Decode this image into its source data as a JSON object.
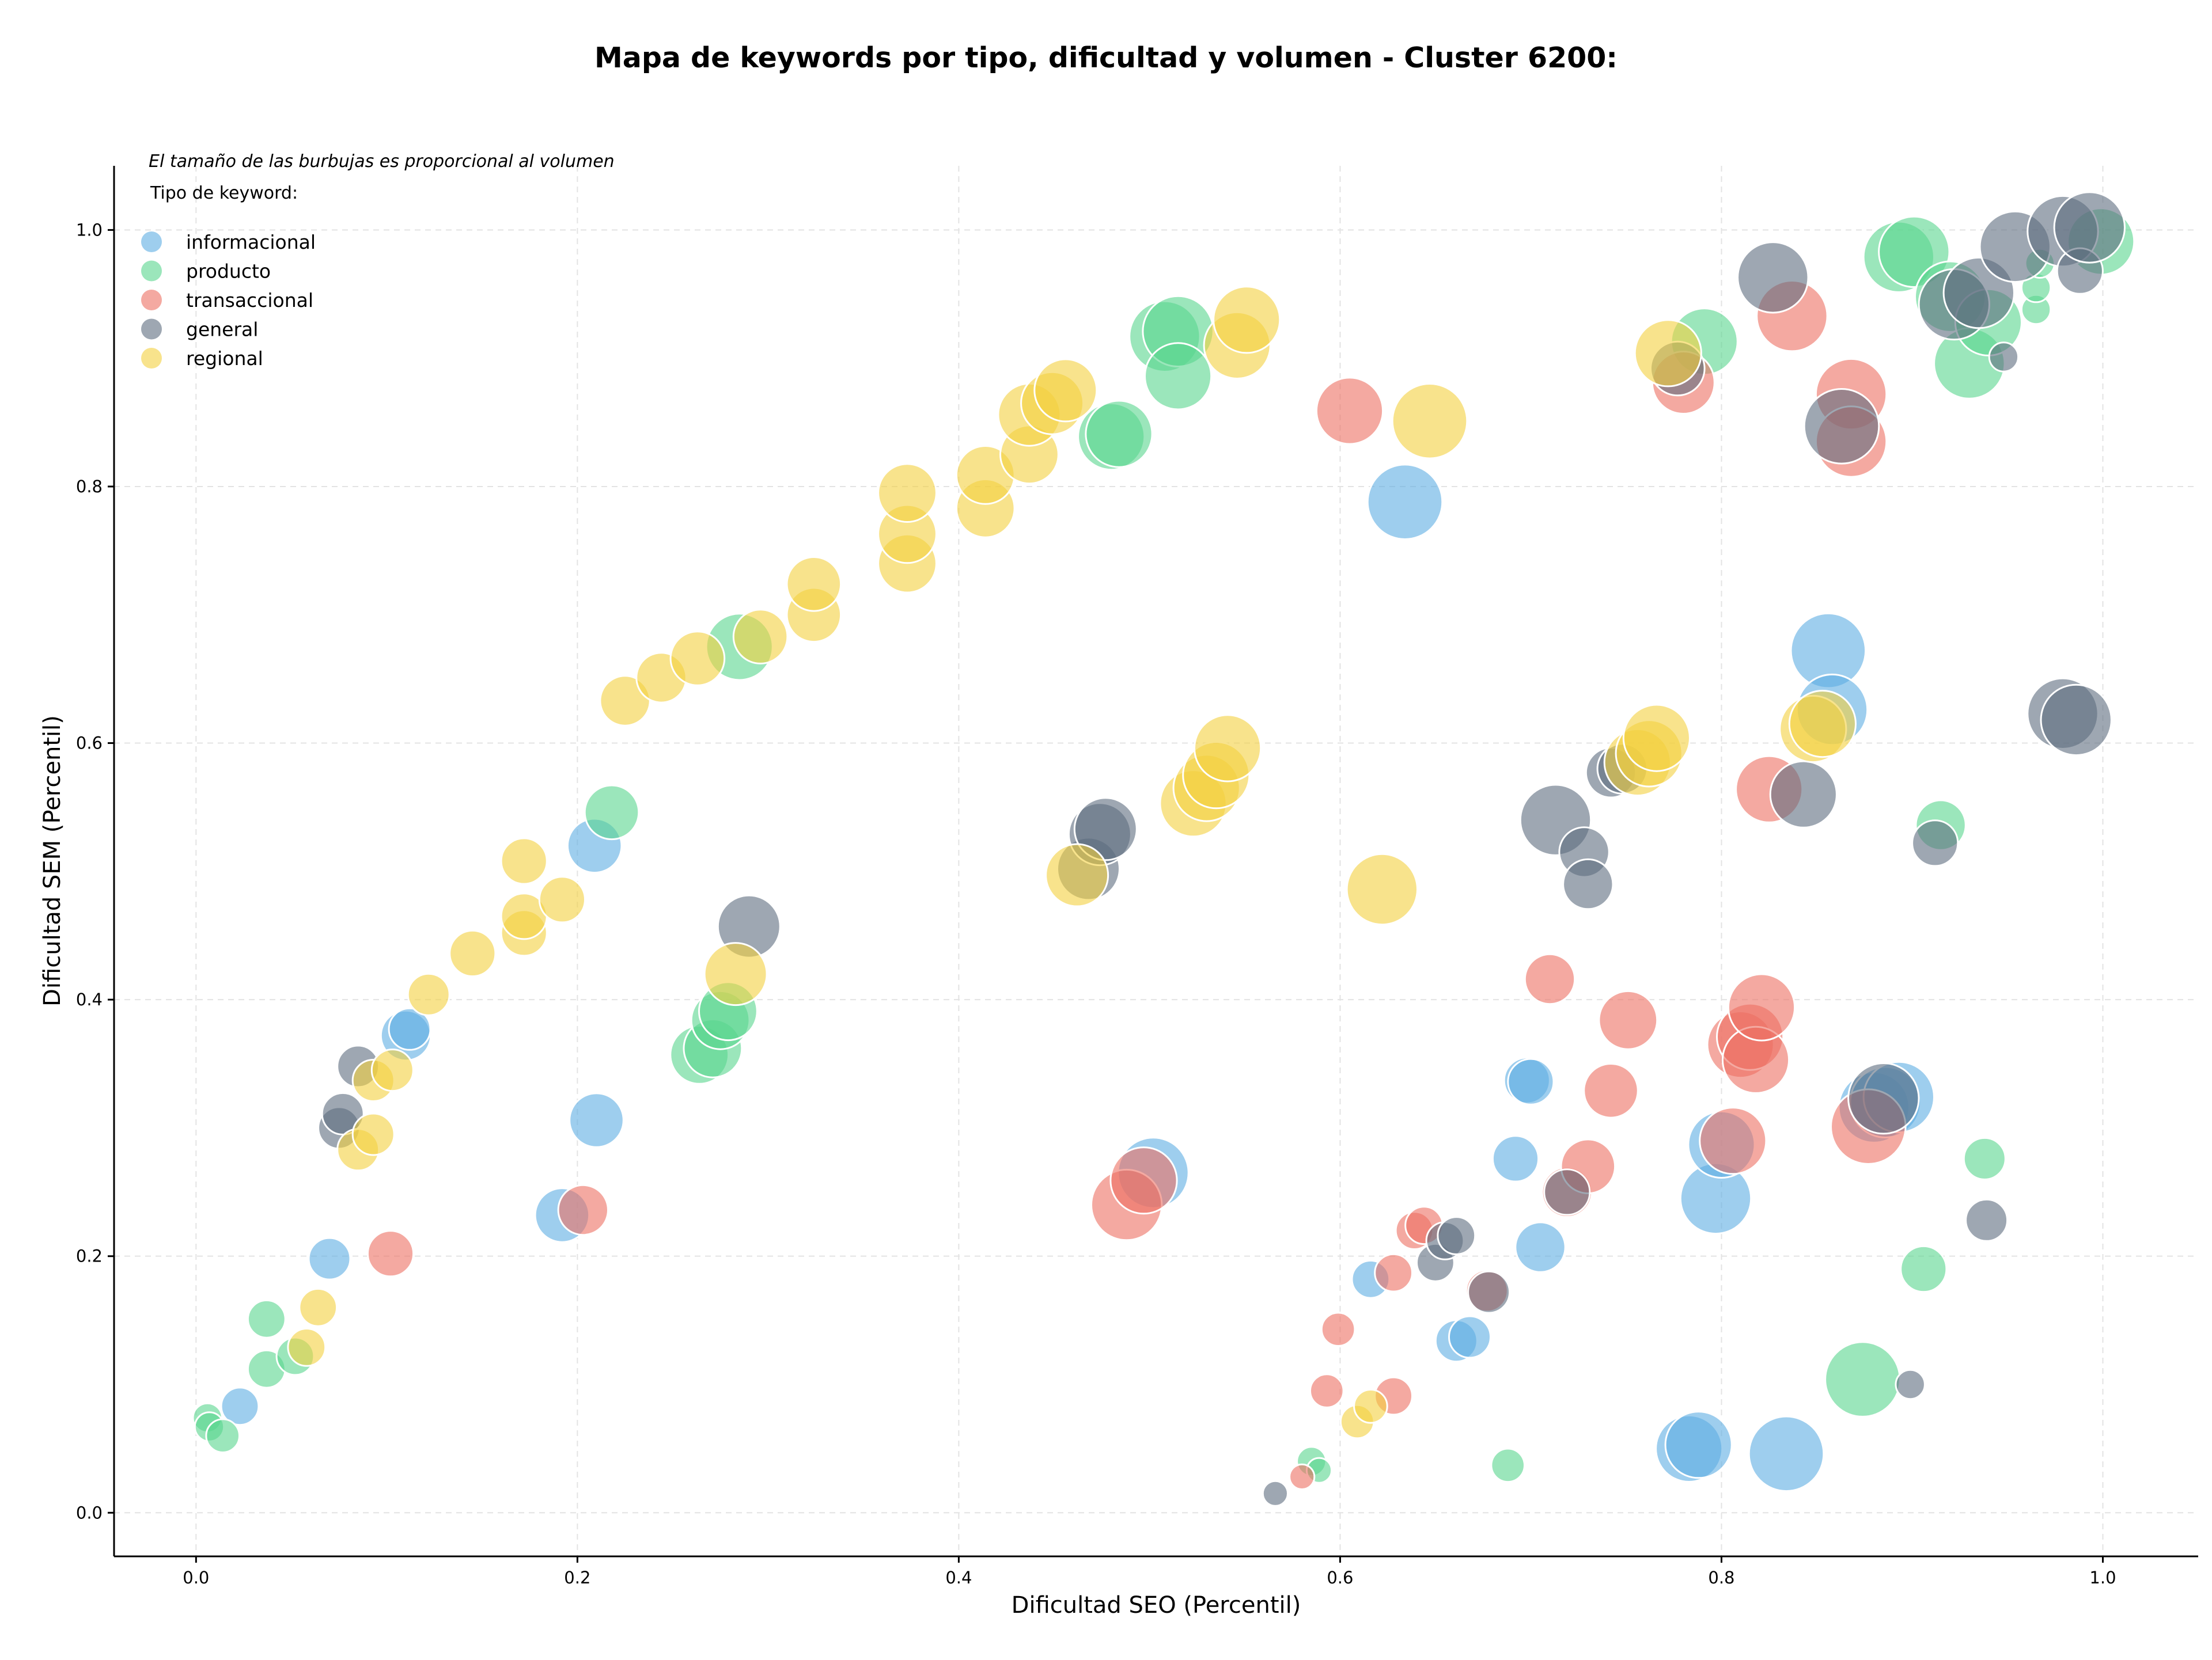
{
  "chart_data": {
    "type": "scatter",
    "title": "Mapa de keywords por tipo, dificultad y volumen - Cluster 6200:",
    "xlabel": "Dificultad SEO (Percentil)",
    "ylabel": "Dificultad SEM (Percentil)",
    "xlim": [
      -0.043,
      1.05
    ],
    "ylim": [
      -0.034,
      1.05
    ],
    "xticks": [
      0.0,
      0.2,
      0.4,
      0.6,
      0.8,
      1.0
    ],
    "yticks": [
      0.0,
      0.2,
      0.4,
      0.6,
      0.8,
      1.0
    ],
    "xtick_labels": [
      "0.0",
      "0.2",
      "0.4",
      "0.6",
      "0.8",
      "1.0"
    ],
    "ytick_labels": [
      "0.0",
      "0.2",
      "0.4",
      "0.6",
      "0.8",
      "1.0"
    ],
    "grid": true,
    "note": "El tamaño de las burbujas es proporcional al volumen",
    "legend_title": "Tipo de keyword:",
    "legend_position": "top-left",
    "series": [
      {
        "name": "informacional",
        "color": "#5DADE2",
        "points": [
          {
            "x": 0.023,
            "y": 0.083,
            "s": 0.9
          },
          {
            "x": 0.07,
            "y": 0.198,
            "s": 1.0
          },
          {
            "x": 0.11,
            "y": 0.372,
            "s": 1.2
          },
          {
            "x": 0.112,
            "y": 0.377,
            "s": 1.0
          },
          {
            "x": 0.192,
            "y": 0.232,
            "s": 1.3
          },
          {
            "x": 0.21,
            "y": 0.306,
            "s": 1.3
          },
          {
            "x": 0.209,
            "y": 0.52,
            "s": 1.3
          },
          {
            "x": 0.502,
            "y": 0.265,
            "s": 1.7
          },
          {
            "x": 0.634,
            "y": 0.788,
            "s": 1.8
          },
          {
            "x": 0.616,
            "y": 0.182,
            "s": 0.9
          },
          {
            "x": 0.661,
            "y": 0.134,
            "s": 1.0
          },
          {
            "x": 0.668,
            "y": 0.137,
            "s": 1.0
          },
          {
            "x": 0.692,
            "y": 0.276,
            "s": 1.1
          },
          {
            "x": 0.698,
            "y": 0.337,
            "s": 1.1
          },
          {
            "x": 0.7,
            "y": 0.336,
            "s": 1.1
          },
          {
            "x": 0.705,
            "y": 0.207,
            "s": 1.2
          },
          {
            "x": 0.783,
            "y": 0.05,
            "s": 1.6
          },
          {
            "x": 0.788,
            "y": 0.053,
            "s": 1.6
          },
          {
            "x": 0.797,
            "y": 0.245,
            "s": 1.7
          },
          {
            "x": 0.8,
            "y": 0.287,
            "s": 1.6
          },
          {
            "x": 0.834,
            "y": 0.046,
            "s": 1.8
          },
          {
            "x": 0.856,
            "y": 0.672,
            "s": 1.8
          },
          {
            "x": 0.858,
            "y": 0.626,
            "s": 1.7
          },
          {
            "x": 0.88,
            "y": 0.316,
            "s": 1.7
          },
          {
            "x": 0.886,
            "y": 0.32,
            "s": 1.7
          },
          {
            "x": 0.893,
            "y": 0.324,
            "s": 1.7
          }
        ]
      },
      {
        "name": "producto",
        "color": "#58D68D",
        "points": [
          {
            "x": 0.006,
            "y": 0.074,
            "s": 0.7
          },
          {
            "x": 0.007,
            "y": 0.067,
            "s": 0.7
          },
          {
            "x": 0.014,
            "y": 0.06,
            "s": 0.8
          },
          {
            "x": 0.037,
            "y": 0.151,
            "s": 0.9
          },
          {
            "x": 0.037,
            "y": 0.112,
            "s": 0.9
          },
          {
            "x": 0.052,
            "y": 0.122,
            "s": 0.9
          },
          {
            "x": 0.218,
            "y": 0.546,
            "s": 1.3
          },
          {
            "x": 0.264,
            "y": 0.357,
            "s": 1.4
          },
          {
            "x": 0.271,
            "y": 0.362,
            "s": 1.4
          },
          {
            "x": 0.275,
            "y": 0.384,
            "s": 1.4
          },
          {
            "x": 0.279,
            "y": 0.391,
            "s": 1.4
          },
          {
            "x": 0.285,
            "y": 0.675,
            "s": 1.6
          },
          {
            "x": 0.48,
            "y": 0.839,
            "s": 1.6
          },
          {
            "x": 0.484,
            "y": 0.841,
            "s": 1.6
          },
          {
            "x": 0.508,
            "y": 0.917,
            "s": 1.7
          },
          {
            "x": 0.515,
            "y": 0.921,
            "s": 1.7
          },
          {
            "x": 0.515,
            "y": 0.886,
            "s": 1.6
          },
          {
            "x": 0.585,
            "y": 0.04,
            "s": 0.7
          },
          {
            "x": 0.589,
            "y": 0.033,
            "s": 0.6
          },
          {
            "x": 0.688,
            "y": 0.037,
            "s": 0.8
          },
          {
            "x": 0.791,
            "y": 0.913,
            "s": 1.6
          },
          {
            "x": 0.874,
            "y": 0.104,
            "s": 1.8
          },
          {
            "x": 0.893,
            "y": 0.979,
            "s": 1.7
          },
          {
            "x": 0.901,
            "y": 0.983,
            "s": 1.7
          },
          {
            "x": 0.906,
            "y": 0.19,
            "s": 1.1
          },
          {
            "x": 0.915,
            "y": 0.536,
            "s": 1.2
          },
          {
            "x": 0.92,
            "y": 0.948,
            "s": 1.7
          },
          {
            "x": 0.93,
            "y": 0.896,
            "s": 1.7
          },
          {
            "x": 0.94,
            "y": 0.928,
            "s": 1.6
          },
          {
            "x": 0.938,
            "y": 0.276,
            "s": 1.0
          },
          {
            "x": 0.965,
            "y": 0.938,
            "s": 0.7
          },
          {
            "x": 0.965,
            "y": 0.955,
            "s": 0.7
          },
          {
            "x": 0.967,
            "y": 0.974,
            "s": 0.7
          },
          {
            "x": 0.999,
            "y": 0.991,
            "s": 1.6
          }
        ]
      },
      {
        "name": "transaccional",
        "color": "#EC7063",
        "points": [
          {
            "x": 0.102,
            "y": 0.202,
            "s": 1.1
          },
          {
            "x": 0.203,
            "y": 0.236,
            "s": 1.2
          },
          {
            "x": 0.488,
            "y": 0.24,
            "s": 1.7
          },
          {
            "x": 0.497,
            "y": 0.259,
            "s": 1.6
          },
          {
            "x": 0.58,
            "y": 0.028,
            "s": 0.6
          },
          {
            "x": 0.593,
            "y": 0.095,
            "s": 0.8
          },
          {
            "x": 0.599,
            "y": 0.143,
            "s": 0.8
          },
          {
            "x": 0.605,
            "y": 0.859,
            "s": 1.6
          },
          {
            "x": 0.628,
            "y": 0.187,
            "s": 0.9
          },
          {
            "x": 0.628,
            "y": 0.091,
            "s": 0.9
          },
          {
            "x": 0.639,
            "y": 0.22,
            "s": 0.9
          },
          {
            "x": 0.644,
            "y": 0.224,
            "s": 0.9
          },
          {
            "x": 0.677,
            "y": 0.173,
            "s": 1.0
          },
          {
            "x": 0.71,
            "y": 0.416,
            "s": 1.2
          },
          {
            "x": 0.719,
            "y": 0.25,
            "s": 1.2
          },
          {
            "x": 0.73,
            "y": 0.27,
            "s": 1.3
          },
          {
            "x": 0.742,
            "y": 0.329,
            "s": 1.3
          },
          {
            "x": 0.751,
            "y": 0.384,
            "s": 1.4
          },
          {
            "x": 0.78,
            "y": 0.881,
            "s": 1.5
          },
          {
            "x": 0.806,
            "y": 0.29,
            "s": 1.6
          },
          {
            "x": 0.81,
            "y": 0.365,
            "s": 1.6
          },
          {
            "x": 0.815,
            "y": 0.371,
            "s": 1.6
          },
          {
            "x": 0.818,
            "y": 0.353,
            "s": 1.6
          },
          {
            "x": 0.821,
            "y": 0.394,
            "s": 1.6
          },
          {
            "x": 0.825,
            "y": 0.564,
            "s": 1.6
          },
          {
            "x": 0.837,
            "y": 0.933,
            "s": 1.7
          },
          {
            "x": 0.868,
            "y": 0.872,
            "s": 1.7
          },
          {
            "x": 0.868,
            "y": 0.835,
            "s": 1.7
          },
          {
            "x": 0.877,
            "y": 0.301,
            "s": 1.8
          }
        ]
      },
      {
        "name": "general",
        "color": "#5D6D7E",
        "points": [
          {
            "x": 0.075,
            "y": 0.3,
            "s": 1.0
          },
          {
            "x": 0.077,
            "y": 0.311,
            "s": 1.0
          },
          {
            "x": 0.085,
            "y": 0.348,
            "s": 1.0
          },
          {
            "x": 0.29,
            "y": 0.457,
            "s": 1.5
          },
          {
            "x": 0.468,
            "y": 0.502,
            "s": 1.5
          },
          {
            "x": 0.474,
            "y": 0.529,
            "s": 1.5
          },
          {
            "x": 0.477,
            "y": 0.533,
            "s": 1.5
          },
          {
            "x": 0.566,
            "y": 0.015,
            "s": 0.6
          },
          {
            "x": 0.65,
            "y": 0.195,
            "s": 0.9
          },
          {
            "x": 0.655,
            "y": 0.212,
            "s": 0.9
          },
          {
            "x": 0.661,
            "y": 0.216,
            "s": 0.9
          },
          {
            "x": 0.678,
            "y": 0.172,
            "s": 1.0
          },
          {
            "x": 0.713,
            "y": 0.54,
            "s": 1.7
          },
          {
            "x": 0.719,
            "y": 0.25,
            "s": 1.1
          },
          {
            "x": 0.728,
            "y": 0.515,
            "s": 1.2
          },
          {
            "x": 0.73,
            "y": 0.49,
            "s": 1.2
          },
          {
            "x": 0.742,
            "y": 0.577,
            "s": 1.2
          },
          {
            "x": 0.748,
            "y": 0.58,
            "s": 1.2
          },
          {
            "x": 0.777,
            "y": 0.892,
            "s": 1.3
          },
          {
            "x": 0.827,
            "y": 0.963,
            "s": 1.7
          },
          {
            "x": 0.843,
            "y": 0.56,
            "s": 1.6
          },
          {
            "x": 0.863,
            "y": 0.847,
            "s": 1.8
          },
          {
            "x": 0.885,
            "y": 0.323,
            "s": 1.7
          },
          {
            "x": 0.899,
            "y": 0.1,
            "s": 0.7
          },
          {
            "x": 0.912,
            "y": 0.522,
            "s": 1.1
          },
          {
            "x": 0.922,
            "y": 0.942,
            "s": 1.7
          },
          {
            "x": 0.935,
            "y": 0.951,
            "s": 1.7
          },
          {
            "x": 0.939,
            "y": 0.228,
            "s": 1.0
          },
          {
            "x": 0.948,
            "y": 0.901,
            "s": 0.7
          },
          {
            "x": 0.954,
            "y": 0.987,
            "s": 1.7
          },
          {
            "x": 0.979,
            "y": 0.623,
            "s": 1.7
          },
          {
            "x": 0.979,
            "y": 0.999,
            "s": 1.7
          },
          {
            "x": 0.986,
            "y": 0.618,
            "s": 1.7
          },
          {
            "x": 0.988,
            "y": 0.968,
            "s": 1.1
          },
          {
            "x": 0.993,
            "y": 1.002,
            "s": 1.7
          }
        ]
      },
      {
        "name": "regional",
        "color": "#F4D03F",
        "points": [
          {
            "x": 0.058,
            "y": 0.129,
            "s": 0.9
          },
          {
            "x": 0.064,
            "y": 0.16,
            "s": 0.9
          },
          {
            "x": 0.085,
            "y": 0.283,
            "s": 1.0
          },
          {
            "x": 0.093,
            "y": 0.295,
            "s": 1.0
          },
          {
            "x": 0.093,
            "y": 0.337,
            "s": 1.0
          },
          {
            "x": 0.103,
            "y": 0.345,
            "s": 1.0
          },
          {
            "x": 0.122,
            "y": 0.404,
            "s": 1.0
          },
          {
            "x": 0.145,
            "y": 0.436,
            "s": 1.1
          },
          {
            "x": 0.172,
            "y": 0.452,
            "s": 1.1
          },
          {
            "x": 0.172,
            "y": 0.465,
            "s": 1.1
          },
          {
            "x": 0.172,
            "y": 0.508,
            "s": 1.1
          },
          {
            "x": 0.192,
            "y": 0.478,
            "s": 1.1
          },
          {
            "x": 0.225,
            "y": 0.633,
            "s": 1.2
          },
          {
            "x": 0.244,
            "y": 0.651,
            "s": 1.2
          },
          {
            "x": 0.263,
            "y": 0.666,
            "s": 1.3
          },
          {
            "x": 0.283,
            "y": 0.42,
            "s": 1.5
          },
          {
            "x": 0.296,
            "y": 0.683,
            "s": 1.3
          },
          {
            "x": 0.324,
            "y": 0.7,
            "s": 1.3
          },
          {
            "x": 0.324,
            "y": 0.724,
            "s": 1.3
          },
          {
            "x": 0.373,
            "y": 0.74,
            "s": 1.4
          },
          {
            "x": 0.373,
            "y": 0.763,
            "s": 1.4
          },
          {
            "x": 0.373,
            "y": 0.795,
            "s": 1.4
          },
          {
            "x": 0.414,
            "y": 0.783,
            "s": 1.4
          },
          {
            "x": 0.414,
            "y": 0.809,
            "s": 1.4
          },
          {
            "x": 0.437,
            "y": 0.825,
            "s": 1.4
          },
          {
            "x": 0.437,
            "y": 0.856,
            "s": 1.5
          },
          {
            "x": 0.449,
            "y": 0.865,
            "s": 1.5
          },
          {
            "x": 0.456,
            "y": 0.875,
            "s": 1.5
          },
          {
            "x": 0.462,
            "y": 0.497,
            "s": 1.5
          },
          {
            "x": 0.523,
            "y": 0.553,
            "s": 1.6
          },
          {
            "x": 0.53,
            "y": 0.565,
            "s": 1.6
          },
          {
            "x": 0.535,
            "y": 0.575,
            "s": 1.6
          },
          {
            "x": 0.541,
            "y": 0.596,
            "s": 1.6
          },
          {
            "x": 0.546,
            "y": 0.91,
            "s": 1.6
          },
          {
            "x": 0.551,
            "y": 0.93,
            "s": 1.6
          },
          {
            "x": 0.609,
            "y": 0.071,
            "s": 0.8
          },
          {
            "x": 0.616,
            "y": 0.083,
            "s": 0.8
          },
          {
            "x": 0.622,
            "y": 0.486,
            "s": 1.7
          },
          {
            "x": 0.647,
            "y": 0.851,
            "s": 1.8
          },
          {
            "x": 0.756,
            "y": 0.585,
            "s": 1.6
          },
          {
            "x": 0.762,
            "y": 0.592,
            "s": 1.6
          },
          {
            "x": 0.766,
            "y": 0.604,
            "s": 1.6
          },
          {
            "x": 0.772,
            "y": 0.904,
            "s": 1.6
          },
          {
            "x": 0.848,
            "y": 0.611,
            "s": 1.6
          },
          {
            "x": 0.853,
            "y": 0.615,
            "s": 1.6
          }
        ]
      }
    ]
  }
}
